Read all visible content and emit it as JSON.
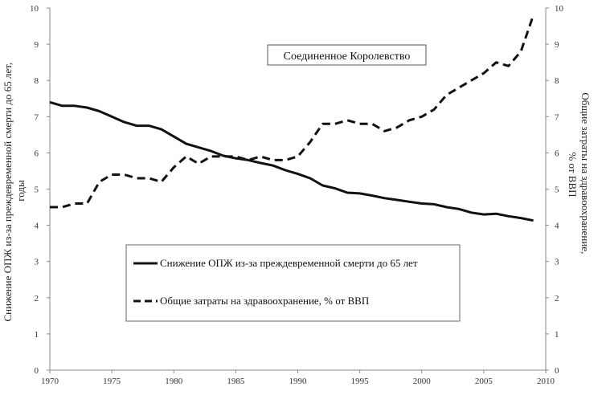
{
  "chart_data": {
    "type": "line",
    "annotation": "Соединенное Королевство",
    "xlim": [
      1970,
      2010
    ],
    "xticks": [
      1970,
      1975,
      1980,
      1985,
      1990,
      1995,
      2000,
      2005,
      2010
    ],
    "ylim_left": [
      0,
      10
    ],
    "ylim_right": [
      0,
      10
    ],
    "yticks_left": [
      0,
      1,
      2,
      3,
      4,
      5,
      6,
      7,
      8,
      9,
      10
    ],
    "yticks_right": [
      0,
      1,
      2,
      3,
      4,
      5,
      6,
      7,
      8,
      9,
      10
    ],
    "ylabel_left": [
      "Снижение ОПЖ из-за преждевременной смерти до 65 лет,",
      "годы"
    ],
    "ylabel_right": [
      "Общие затраты на здравоохранение,",
      "% от ВВП"
    ],
    "grid": "none",
    "legend_position": "center-left",
    "series": [
      {
        "name": "Снижение ОПЖ из-за преждевременной смерти до 65 лет",
        "axis": "left",
        "style": "solid",
        "color": "#111111",
        "x": [
          1970,
          1971,
          1972,
          1973,
          1974,
          1975,
          1976,
          1977,
          1978,
          1979,
          1980,
          1981,
          1982,
          1983,
          1984,
          1985,
          1986,
          1987,
          1988,
          1989,
          1990,
          1991,
          1992,
          1993,
          1994,
          1995,
          1996,
          1997,
          1998,
          1999,
          2000,
          2001,
          2002,
          2003,
          2004,
          2005,
          2006,
          2007,
          2008,
          2009
        ],
        "y": [
          7.4,
          7.3,
          7.3,
          7.25,
          7.15,
          7.0,
          6.85,
          6.75,
          6.75,
          6.65,
          6.45,
          6.25,
          6.15,
          6.05,
          5.92,
          5.85,
          5.8,
          5.72,
          5.65,
          5.52,
          5.42,
          5.3,
          5.1,
          5.02,
          4.9,
          4.88,
          4.82,
          4.75,
          4.7,
          4.65,
          4.6,
          4.58,
          4.5,
          4.45,
          4.35,
          4.3,
          4.32,
          4.25,
          4.2,
          4.13
        ]
      },
      {
        "name": "Общие затраты на здравоохранение, % от ВВП",
        "axis": "right",
        "style": "dashed",
        "color": "#111111",
        "x": [
          1970,
          1971,
          1972,
          1973,
          1974,
          1975,
          1976,
          1977,
          1978,
          1979,
          1980,
          1981,
          1982,
          1983,
          1984,
          1985,
          1986,
          1987,
          1988,
          1989,
          1990,
          1991,
          1992,
          1993,
          1994,
          1995,
          1996,
          1997,
          1998,
          1999,
          2000,
          2001,
          2002,
          2003,
          2004,
          2005,
          2006,
          2007,
          2008,
          2009
        ],
        "y": [
          4.5,
          4.5,
          4.6,
          4.6,
          5.2,
          5.4,
          5.4,
          5.3,
          5.3,
          5.2,
          5.6,
          5.9,
          5.7,
          5.9,
          5.9,
          5.9,
          5.8,
          5.9,
          5.8,
          5.8,
          5.9,
          6.3,
          6.8,
          6.8,
          6.9,
          6.8,
          6.8,
          6.6,
          6.7,
          6.9,
          7.0,
          7.2,
          7.6,
          7.8,
          8.0,
          8.2,
          8.5,
          8.4,
          8.8,
          9.8
        ]
      }
    ]
  }
}
